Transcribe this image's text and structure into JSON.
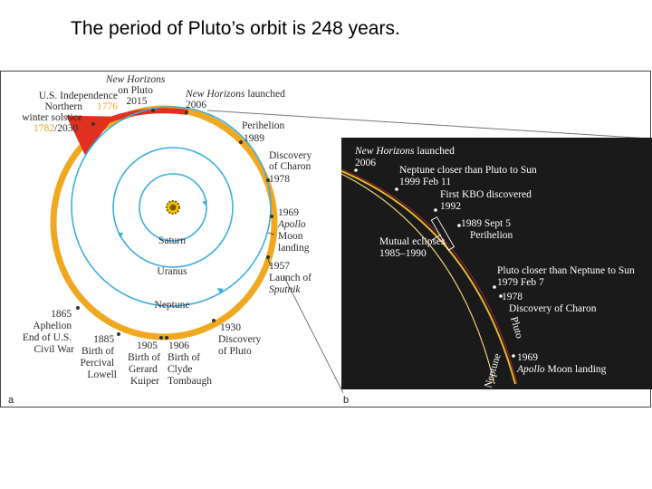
{
  "slide": {
    "title": "The period of Pluto’s orbit is 248 years."
  },
  "panel_a": {
    "tag": "a",
    "new_horizons_pluto": [
      "New Horizons",
      "on Pluto",
      "2015"
    ],
    "us_independence": [
      "U.S. Independence",
      "1776"
    ],
    "winter_solstice": [
      "Northern",
      "winter solstice",
      "1782",
      "/2030"
    ],
    "nh_launched": [
      "New Horizons",
      " launched",
      "2006"
    ],
    "perihelion": [
      "Perihelion",
      "1989"
    ],
    "charon": [
      "Discovery",
      "of Charon",
      "1978"
    ],
    "apollo": [
      "1969",
      "Apollo",
      "Moon",
      "landing"
    ],
    "sputnik": [
      "1957",
      "Launch of",
      "Sputnik"
    ],
    "planet_labels": [
      "Saturn",
      "Uranus",
      "Neptune"
    ],
    "aphelion": [
      "1865",
      "Aphelion",
      "End of U.S.",
      "Civil War"
    ],
    "lowell": [
      "1885",
      "Birth of",
      "Percival",
      "Lowell"
    ],
    "kuiper": [
      "1905",
      "Birth of",
      "Gerard",
      "Kuiper"
    ],
    "tombaugh": [
      "1906",
      "Birth of",
      "Clyde",
      "Tombaugh"
    ],
    "pluto_discovery": [
      "1930",
      "Discovery",
      "of Pluto"
    ]
  },
  "panel_b": {
    "tag": "b",
    "nh_launched": [
      "New Horizons",
      " launched",
      "2006"
    ],
    "neptune_closer": [
      "Neptune closer than Pluto to Sun",
      "1999 Feb 11"
    ],
    "kbo": [
      "First KBO discovered",
      "1992"
    ],
    "perihelion": [
      "1989 Sept 5",
      "Perihelion"
    ],
    "mutual_eclipses": [
      "Mutual eclipses",
      "1985–1990"
    ],
    "pluto_closer": [
      "Pluto closer than Neptune to Sun",
      "1979 Feb 7"
    ],
    "charon": [
      "1978",
      "Discovery of Charon"
    ],
    "pluto_label": "Pluto",
    "neptune_label": "Neptune",
    "apollo": [
      "1969",
      "Apollo",
      " Moon landing"
    ]
  },
  "colors": {
    "pluto_orbit": "#f0a820",
    "planet_orbit": "#3aaedf",
    "red_arc": "#e03020",
    "panel_b_bg": "#1a1a1a",
    "highlight_label": "#f0a020"
  }
}
